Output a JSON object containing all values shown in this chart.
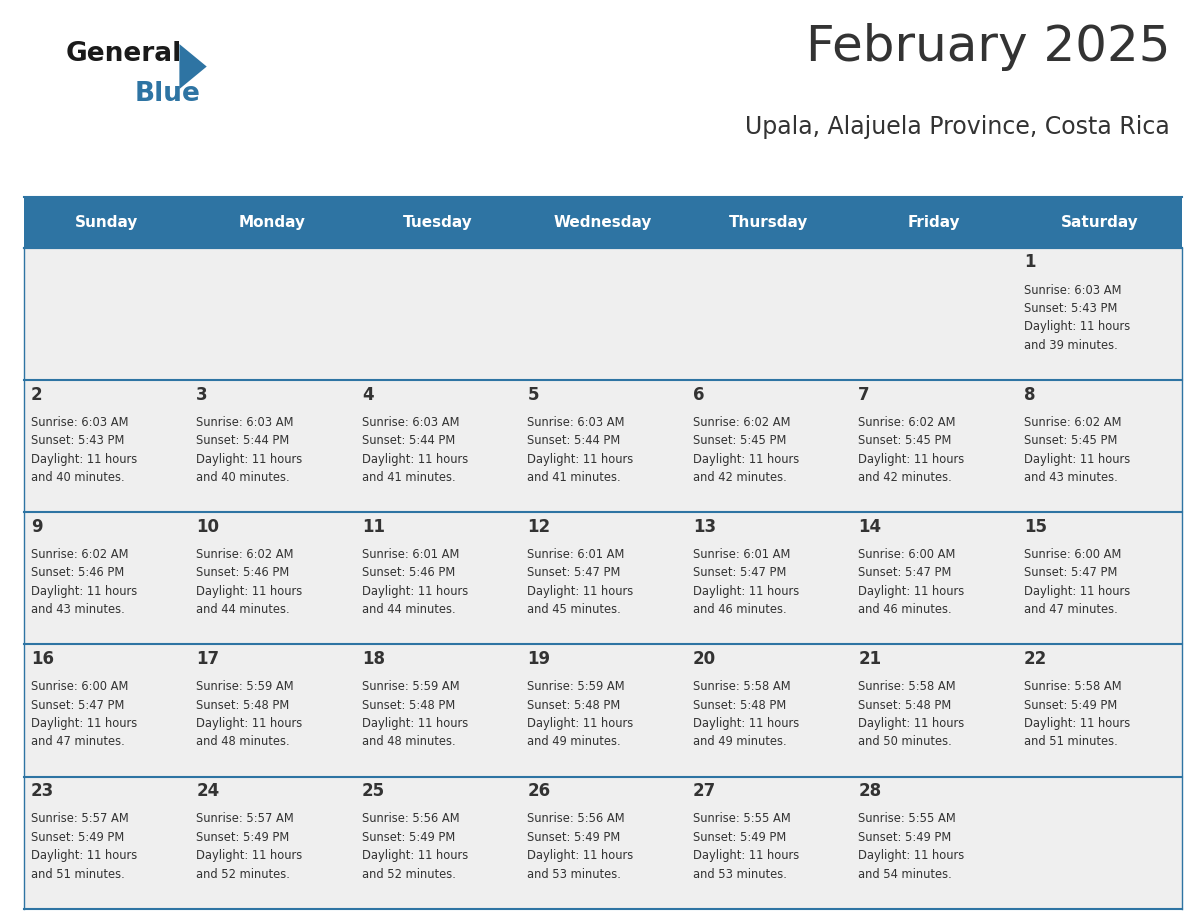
{
  "title": "February 2025",
  "subtitle": "Upala, Alajuela Province, Costa Rica",
  "header_bg": "#2E74A3",
  "header_text_color": "#FFFFFF",
  "cell_bg_light": "#EFEFEF",
  "border_color": "#2E74A3",
  "text_color": "#333333",
  "days_of_week": [
    "Sunday",
    "Monday",
    "Tuesday",
    "Wednesday",
    "Thursday",
    "Friday",
    "Saturday"
  ],
  "calendar_data": [
    [
      {
        "day": null,
        "sunrise": null,
        "sunset": null,
        "daylight": null
      },
      {
        "day": null,
        "sunrise": null,
        "sunset": null,
        "daylight": null
      },
      {
        "day": null,
        "sunrise": null,
        "sunset": null,
        "daylight": null
      },
      {
        "day": null,
        "sunrise": null,
        "sunset": null,
        "daylight": null
      },
      {
        "day": null,
        "sunrise": null,
        "sunset": null,
        "daylight": null
      },
      {
        "day": null,
        "sunrise": null,
        "sunset": null,
        "daylight": null
      },
      {
        "day": 1,
        "sunrise": "6:03 AM",
        "sunset": "5:43 PM",
        "daylight": "11 hours\nand 39 minutes."
      }
    ],
    [
      {
        "day": 2,
        "sunrise": "6:03 AM",
        "sunset": "5:43 PM",
        "daylight": "11 hours\nand 40 minutes."
      },
      {
        "day": 3,
        "sunrise": "6:03 AM",
        "sunset": "5:44 PM",
        "daylight": "11 hours\nand 40 minutes."
      },
      {
        "day": 4,
        "sunrise": "6:03 AM",
        "sunset": "5:44 PM",
        "daylight": "11 hours\nand 41 minutes."
      },
      {
        "day": 5,
        "sunrise": "6:03 AM",
        "sunset": "5:44 PM",
        "daylight": "11 hours\nand 41 minutes."
      },
      {
        "day": 6,
        "sunrise": "6:02 AM",
        "sunset": "5:45 PM",
        "daylight": "11 hours\nand 42 minutes."
      },
      {
        "day": 7,
        "sunrise": "6:02 AM",
        "sunset": "5:45 PM",
        "daylight": "11 hours\nand 42 minutes."
      },
      {
        "day": 8,
        "sunrise": "6:02 AM",
        "sunset": "5:45 PM",
        "daylight": "11 hours\nand 43 minutes."
      }
    ],
    [
      {
        "day": 9,
        "sunrise": "6:02 AM",
        "sunset": "5:46 PM",
        "daylight": "11 hours\nand 43 minutes."
      },
      {
        "day": 10,
        "sunrise": "6:02 AM",
        "sunset": "5:46 PM",
        "daylight": "11 hours\nand 44 minutes."
      },
      {
        "day": 11,
        "sunrise": "6:01 AM",
        "sunset": "5:46 PM",
        "daylight": "11 hours\nand 44 minutes."
      },
      {
        "day": 12,
        "sunrise": "6:01 AM",
        "sunset": "5:47 PM",
        "daylight": "11 hours\nand 45 minutes."
      },
      {
        "day": 13,
        "sunrise": "6:01 AM",
        "sunset": "5:47 PM",
        "daylight": "11 hours\nand 46 minutes."
      },
      {
        "day": 14,
        "sunrise": "6:00 AM",
        "sunset": "5:47 PM",
        "daylight": "11 hours\nand 46 minutes."
      },
      {
        "day": 15,
        "sunrise": "6:00 AM",
        "sunset": "5:47 PM",
        "daylight": "11 hours\nand 47 minutes."
      }
    ],
    [
      {
        "day": 16,
        "sunrise": "6:00 AM",
        "sunset": "5:47 PM",
        "daylight": "11 hours\nand 47 minutes."
      },
      {
        "day": 17,
        "sunrise": "5:59 AM",
        "sunset": "5:48 PM",
        "daylight": "11 hours\nand 48 minutes."
      },
      {
        "day": 18,
        "sunrise": "5:59 AM",
        "sunset": "5:48 PM",
        "daylight": "11 hours\nand 48 minutes."
      },
      {
        "day": 19,
        "sunrise": "5:59 AM",
        "sunset": "5:48 PM",
        "daylight": "11 hours\nand 49 minutes."
      },
      {
        "day": 20,
        "sunrise": "5:58 AM",
        "sunset": "5:48 PM",
        "daylight": "11 hours\nand 49 minutes."
      },
      {
        "day": 21,
        "sunrise": "5:58 AM",
        "sunset": "5:48 PM",
        "daylight": "11 hours\nand 50 minutes."
      },
      {
        "day": 22,
        "sunrise": "5:58 AM",
        "sunset": "5:49 PM",
        "daylight": "11 hours\nand 51 minutes."
      }
    ],
    [
      {
        "day": 23,
        "sunrise": "5:57 AM",
        "sunset": "5:49 PM",
        "daylight": "11 hours\nand 51 minutes."
      },
      {
        "day": 24,
        "sunrise": "5:57 AM",
        "sunset": "5:49 PM",
        "daylight": "11 hours\nand 52 minutes."
      },
      {
        "day": 25,
        "sunrise": "5:56 AM",
        "sunset": "5:49 PM",
        "daylight": "11 hours\nand 52 minutes."
      },
      {
        "day": 26,
        "sunrise": "5:56 AM",
        "sunset": "5:49 PM",
        "daylight": "11 hours\nand 53 minutes."
      },
      {
        "day": 27,
        "sunrise": "5:55 AM",
        "sunset": "5:49 PM",
        "daylight": "11 hours\nand 53 minutes."
      },
      {
        "day": 28,
        "sunrise": "5:55 AM",
        "sunset": "5:49 PM",
        "daylight": "11 hours\nand 54 minutes."
      },
      {
        "day": null,
        "sunrise": null,
        "sunset": null,
        "daylight": null
      }
    ]
  ]
}
